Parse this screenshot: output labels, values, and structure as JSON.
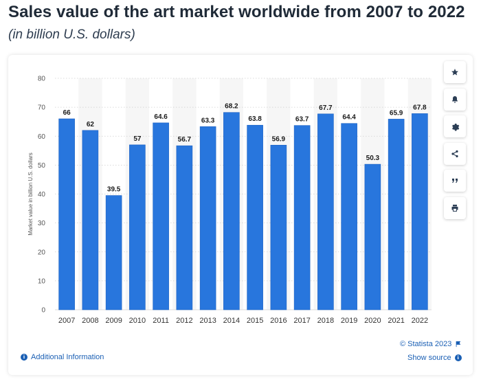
{
  "page": {
    "title": "Sales value of the art market worldwide from 2007 to 2022",
    "subtitle": "(in billion U.S. dollars)"
  },
  "toolbar": {
    "items": [
      {
        "name": "star-icon",
        "label": "Favorite"
      },
      {
        "name": "bell-icon",
        "label": "Notifications"
      },
      {
        "name": "gear-icon",
        "label": "Settings"
      },
      {
        "name": "share-icon",
        "label": "Share"
      },
      {
        "name": "quote-icon",
        "label": "Cite"
      },
      {
        "name": "print-icon",
        "label": "Print"
      }
    ]
  },
  "footer": {
    "copyright": "© Statista 2023",
    "show_source": "Show source",
    "additional_info": "Additional Information"
  },
  "colors": {
    "bar": "#2876dd",
    "accent": "#1a5fb4",
    "band": "#f6f6f6"
  },
  "chart_data": {
    "type": "bar",
    "title": "Sales value of the art market worldwide from 2007 to 2022",
    "subtitle": "(in billion U.S. dollars)",
    "xlabel": "",
    "ylabel": "Market value in billion U.S. dollars",
    "categories": [
      "2007",
      "2008",
      "2009",
      "2010",
      "2011",
      "2012",
      "2013",
      "2014",
      "2015",
      "2016",
      "2017",
      "2018",
      "2019",
      "2020",
      "2021",
      "2022"
    ],
    "values": [
      66,
      62,
      39.5,
      57,
      64.6,
      56.7,
      63.3,
      68.2,
      63.8,
      56.9,
      63.7,
      67.7,
      64.4,
      50.3,
      65.9,
      67.8
    ],
    "labels": [
      "66",
      "62",
      "39.5",
      "57",
      "64.6",
      "56.7",
      "63.3",
      "68.2",
      "63.8",
      "56.9",
      "63.7",
      "67.7",
      "64.4",
      "50.3",
      "65.9",
      "67.8"
    ],
    "ylim": [
      0,
      80
    ],
    "yticks": [
      0,
      10,
      20,
      30,
      40,
      50,
      60,
      70,
      80
    ],
    "grid": true,
    "legend": "none"
  }
}
